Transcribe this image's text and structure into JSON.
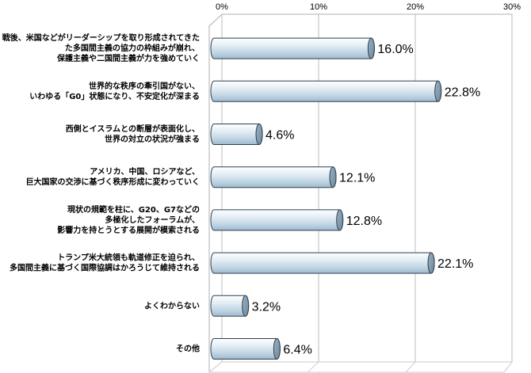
{
  "chart_data": {
    "type": "bar",
    "orientation": "horizontal",
    "style": "3d-cylinder",
    "categories": [
      [
        "戦後、米国などがリーダーシップを取り形成されてきた",
        "た多国間主義の協力の枠組みが崩れ、",
        "保護主義や二国間主義が力を強めていく"
      ],
      [
        "世界的な秩序の牽引国がない、",
        "いわゆる「G0」状態になり、不安定化が深まる"
      ],
      [
        "西側とイスラムとの断層が表面化し、",
        "世界の対立の状況が強まる"
      ],
      [
        "アメリカ、中国、ロシアなど、",
        "巨大国家の交渉に基づく秩序形成に変わっていく"
      ],
      [
        "現状の規範を柱に、G20、G7などの",
        "多極化したフォーラムが、",
        "影響力を持とうとする展開が模索される"
      ],
      [
        "トランプ米大統領も軌道修正を迫られ、",
        "多国間主義に基づく国際協調はかろうじて維持される"
      ],
      [
        "よくわからない"
      ],
      [
        "その他"
      ]
    ],
    "values": [
      16.0,
      22.8,
      4.6,
      12.1,
      12.8,
      22.1,
      3.2,
      6.4
    ],
    "data_labels": [
      "16.0%",
      "22.8%",
      "4.6%",
      "12.1%",
      "12.8%",
      "22.1%",
      "3.2%",
      "6.4%"
    ],
    "xlim": [
      0,
      30
    ],
    "ticks": [
      0,
      10,
      20,
      30
    ],
    "tick_labels": [
      "0%",
      "10%",
      "20%",
      "30%"
    ],
    "bar_color": "#dce9f2",
    "grid": true,
    "legend": "none"
  }
}
